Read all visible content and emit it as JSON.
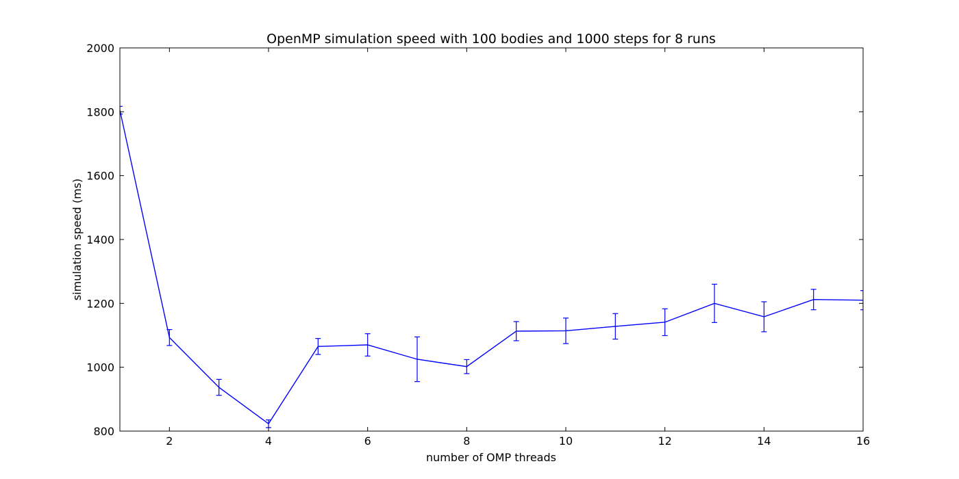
{
  "chart_data": {
    "type": "line",
    "title": "OpenMP simulation speed with 100 bodies and 1000 steps for 8 runs",
    "xlabel": "number of OMP threads",
    "ylabel": "simulation speed (ms)",
    "xlim": [
      1,
      16
    ],
    "ylim": [
      800,
      2000
    ],
    "xticks": [
      2,
      4,
      6,
      8,
      10,
      12,
      14,
      16
    ],
    "yticks": [
      800,
      1000,
      1200,
      1400,
      1600,
      1800,
      2000
    ],
    "grid": false,
    "legend": "none",
    "series": [
      {
        "color": "#0000ff",
        "x": [
          1,
          2,
          3,
          4,
          5,
          6,
          7,
          8,
          9,
          10,
          11,
          12,
          13,
          14,
          15,
          16
        ],
        "y": [
          1805,
          1093,
          937,
          823,
          1065,
          1070,
          1025,
          1002,
          1113,
          1114,
          1128,
          1141,
          1200,
          1158,
          1212,
          1210
        ],
        "error": [
          12,
          25,
          25,
          12,
          25,
          35,
          70,
          22,
          30,
          40,
          40,
          42,
          60,
          47,
          32,
          30
        ]
      }
    ]
  }
}
